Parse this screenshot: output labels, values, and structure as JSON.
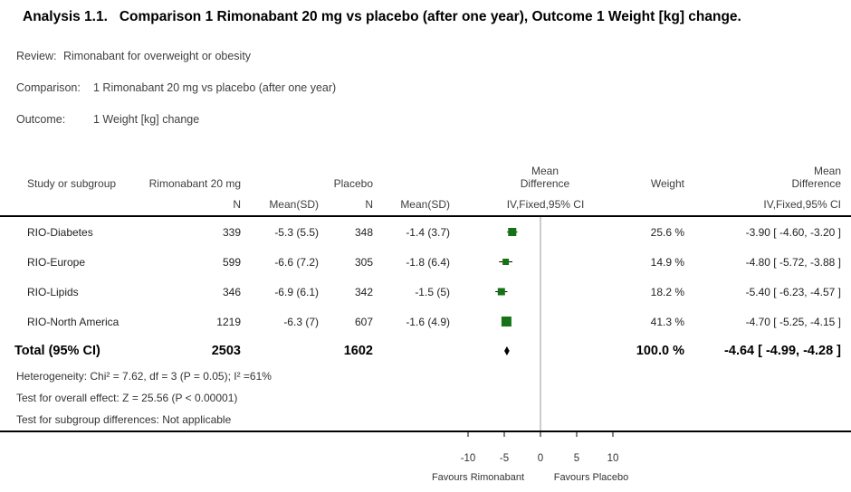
{
  "title": "Analysis 1.1.   Comparison 1 Rimonabant 20 mg vs placebo (after one year), Outcome 1 Weight [kg] change.",
  "meta": {
    "review_label": "Review:",
    "review": "Rimonabant for overweight or obesity",
    "comparison_label": "Comparison:",
    "comparison": "1 Rimonabant 20 mg vs placebo (after one year)",
    "outcome_label": "Outcome:",
    "outcome": "1 Weight [kg] change"
  },
  "table": {
    "headers": {
      "col_study": "Study or subgroup",
      "col_treatment": "Rimonabant 20 mg",
      "col_placebo": "Placebo",
      "col_n": "N",
      "col_mean_sd": "Mean(SD)",
      "col_mean": "Mean",
      "col_difference": "Difference",
      "col_ci": "IV,Fixed,95% CI",
      "col_weight": "Weight"
    },
    "rows": [
      {
        "study": "RIO-Diabetes",
        "t_n": "339",
        "t_mean_sd": "-5.3 (5.5)",
        "p_n": "348",
        "p_mean_sd": "-1.4 (3.7)",
        "weight": "25.6 %",
        "md_text": "-3.90 [ -4.60, -3.20 ]"
      },
      {
        "study": "RIO-Europe",
        "t_n": "599",
        "t_mean_sd": "-6.6 (7.2)",
        "p_n": "305",
        "p_mean_sd": "-1.8 (6.4)",
        "weight": "14.9 %",
        "md_text": "-4.80 [ -5.72, -3.88 ]"
      },
      {
        "study": "RIO-Lipids",
        "t_n": "346",
        "t_mean_sd": "-6.9 (6.1)",
        "p_n": "342",
        "p_mean_sd": "-1.5 (5)",
        "weight": "18.2 %",
        "md_text": "-5.40 [ -6.23, -4.57 ]"
      },
      {
        "study": "RIO-North America",
        "t_n": "1219",
        "t_mean_sd": "-6.3 (7)",
        "p_n": "607",
        "p_mean_sd": "-1.6 (4.9)",
        "weight": "41.3 %",
        "md_text": "-4.70 [ -5.25, -4.15 ]"
      }
    ],
    "total": {
      "label": "Total (95% CI)",
      "t_n": "2503",
      "p_n": "1602",
      "weight": "100.0 %",
      "md_text": "-4.64 [ -4.99, -4.28 ]"
    },
    "footnotes": {
      "heterogeneity": "Heterogeneity: Chi² = 7.62, df = 3 (P = 0.05); I² =61%",
      "overall_effect": "Test for overall effect: Z = 25.56 (P < 0.00001)",
      "subgroup": "Test for subgroup differences: Not applicable"
    }
  },
  "chart_data": {
    "type": "forest",
    "x_ticks": [
      -10,
      -5,
      0,
      5,
      10
    ],
    "xlim": [
      -12,
      12
    ],
    "favours_left": "Favours Rimonabant",
    "favours_right": "Favours Placebo",
    "marker_color": "#157315",
    "summary_color": "#000000",
    "studies": [
      {
        "name": "RIO-Diabetes",
        "md": -3.9,
        "ci_low": -4.6,
        "ci_high": -3.2,
        "weight_pct": 25.6
      },
      {
        "name": "RIO-Europe",
        "md": -4.8,
        "ci_low": -5.72,
        "ci_high": -3.88,
        "weight_pct": 14.9
      },
      {
        "name": "RIO-Lipids",
        "md": -5.4,
        "ci_low": -6.23,
        "ci_high": -4.57,
        "weight_pct": 18.2
      },
      {
        "name": "RIO-North America",
        "md": -4.7,
        "ci_low": -5.25,
        "ci_high": -4.15,
        "weight_pct": 41.3
      }
    ],
    "total": {
      "md": -4.64,
      "ci_low": -4.99,
      "ci_high": -4.28
    }
  }
}
